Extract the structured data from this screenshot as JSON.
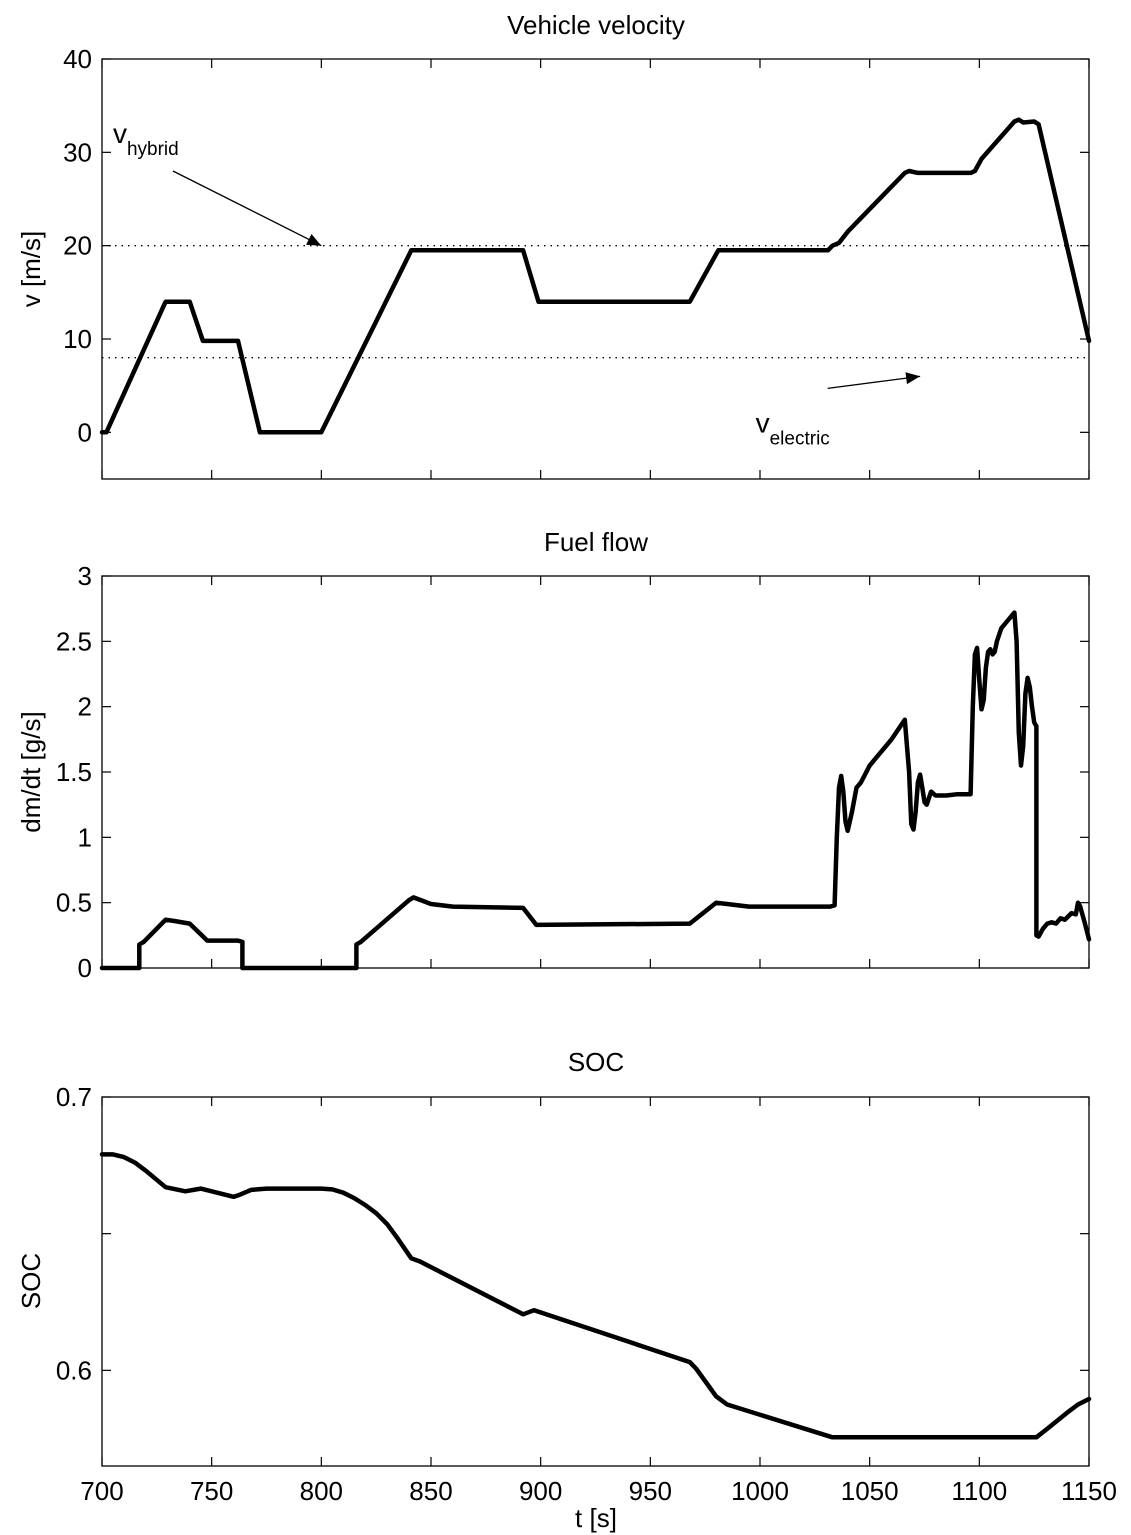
{
  "colors": {
    "line": "#000000",
    "background": "#ffffff",
    "axes": "#000000"
  },
  "chart_data": [
    {
      "type": "line",
      "title": "Vehicle velocity",
      "xlabel": "",
      "ylabel": "v [m/s]",
      "xlim": [
        700,
        1150
      ],
      "ylim": [
        -5,
        40
      ],
      "yticks": [
        "0",
        "10",
        "20",
        "30",
        "40"
      ],
      "xticks": [
        "",
        "",
        "",
        "",
        "",
        "",
        "",
        "",
        "",
        ""
      ],
      "grid": false,
      "series": [
        {
          "x": [
            700,
            702,
            729,
            740,
            746,
            762,
            772,
            800,
            841,
            892,
            899,
            968,
            981,
            1031,
            1033,
            1036,
            1040,
            1066,
            1068,
            1072,
            1077,
            1096,
            1098,
            1101,
            1116,
            1118,
            1120,
            1125,
            1127,
            1150
          ],
          "y": [
            0,
            0,
            14,
            14,
            9.8,
            9.8,
            0,
            0,
            19.5,
            19.5,
            14,
            14,
            19.5,
            19.5,
            20,
            20.3,
            21.5,
            27.8,
            28,
            27.8,
            27.8,
            27.8,
            28,
            29.3,
            33.3,
            33.5,
            33.2,
            33.3,
            33,
            9.8
          ]
        }
      ],
      "reference_lines": [
        {
          "y": 20,
          "style": "dotted"
        },
        {
          "y": 8,
          "style": "dotted"
        }
      ],
      "annotations": [
        {
          "text": "v",
          "subscript": "hybrid",
          "at_x": 705,
          "at_y": 31,
          "arrow_to": [
            800,
            20
          ]
        },
        {
          "text": "v",
          "subscript": "electric",
          "at_x": 998,
          "at_y": 0,
          "arrow_to": [
            1073,
            6
          ]
        }
      ]
    },
    {
      "type": "line",
      "title": "Fuel flow",
      "xlabel": "",
      "ylabel": "dm/dt [g/s]",
      "xlim": [
        700,
        1150
      ],
      "ylim": [
        0,
        3
      ],
      "yticks": [
        "0",
        "0.5",
        "1",
        "1.5",
        "2",
        "2.5",
        "3"
      ],
      "xticks": [
        "",
        "",
        "",
        "",
        "",
        "",
        "",
        "",
        "",
        ""
      ],
      "grid": false,
      "series": [
        {
          "x": [
            700,
            717,
            717,
            719,
            729,
            733,
            740,
            748,
            762,
            764,
            764,
            816,
            816,
            818,
            840,
            842,
            850,
            860,
            892,
            898,
            968,
            980,
            985,
            995,
            1032,
            1034,
            1035,
            1036,
            1037,
            1038,
            1039,
            1040,
            1042,
            1044,
            1046,
            1050,
            1055,
            1060,
            1066,
            1068,
            1069,
            1070,
            1071,
            1072,
            1073,
            1074,
            1075,
            1076,
            1077,
            1078,
            1080,
            1082,
            1085,
            1090,
            1096,
            1097,
            1098,
            1099,
            1100,
            1101,
            1102,
            1103,
            1104,
            1105,
            1106,
            1107,
            1108,
            1110,
            1112,
            1115,
            1116,
            1117,
            1118,
            1119,
            1120,
            1121,
            1122,
            1123,
            1124,
            1125,
            1126,
            1126,
            1127,
            1129,
            1131,
            1133,
            1135,
            1137,
            1139,
            1142,
            1144,
            1145,
            1146,
            1148,
            1150
          ],
          "y": [
            0,
            0,
            0.18,
            0.2,
            0.37,
            0.36,
            0.34,
            0.21,
            0.21,
            0.2,
            0,
            0,
            0.18,
            0.2,
            0.52,
            0.54,
            0.49,
            0.47,
            0.46,
            0.33,
            0.34,
            0.5,
            0.49,
            0.47,
            0.47,
            0.48,
            1.0,
            1.38,
            1.47,
            1.35,
            1.12,
            1.05,
            1.2,
            1.38,
            1.42,
            1.55,
            1.65,
            1.75,
            1.9,
            1.5,
            1.1,
            1.06,
            1.2,
            1.42,
            1.48,
            1.38,
            1.27,
            1.25,
            1.3,
            1.35,
            1.32,
            1.32,
            1.32,
            1.33,
            1.33,
            2.0,
            2.4,
            2.45,
            2.2,
            1.98,
            2.05,
            2.3,
            2.42,
            2.44,
            2.4,
            2.42,
            2.5,
            2.6,
            2.64,
            2.7,
            2.72,
            2.5,
            1.8,
            1.55,
            1.7,
            2.1,
            2.22,
            2.15,
            2.0,
            1.88,
            1.85,
            0.25,
            0.24,
            0.3,
            0.34,
            0.35,
            0.34,
            0.38,
            0.37,
            0.42,
            0.41,
            0.5,
            0.47,
            0.35,
            0.22
          ]
        }
      ]
    },
    {
      "type": "line",
      "title": "SOC",
      "xlabel": "t [s]",
      "ylabel": "SOC",
      "xlim": [
        700,
        1150
      ],
      "ylim": [
        0.565,
        0.7
      ],
      "yticks": [
        "0.6",
        "0.7"
      ],
      "xticks": [
        "700",
        "750",
        "800",
        "850",
        "900",
        "950",
        "1000",
        "1050",
        "1100",
        "1150"
      ],
      "grid": false,
      "series": [
        {
          "x": [
            700,
            705,
            710,
            715,
            720,
            729,
            738,
            745,
            760,
            762,
            768,
            775,
            800,
            805,
            810,
            815,
            820,
            825,
            830,
            835,
            841,
            845,
            892,
            897,
            968,
            971,
            980,
            985,
            1033,
            1126,
            1130,
            1140,
            1145,
            1150
          ],
          "y": [
            0.679,
            0.679,
            0.678,
            0.676,
            0.673,
            0.667,
            0.6655,
            0.6665,
            0.6635,
            0.664,
            0.666,
            0.6665,
            0.6665,
            0.6662,
            0.665,
            0.663,
            0.6605,
            0.6575,
            0.6535,
            0.648,
            0.641,
            0.6398,
            0.6205,
            0.622,
            0.603,
            0.6005,
            0.5905,
            0.5875,
            0.5755,
            0.5755,
            0.578,
            0.5845,
            0.5875,
            0.5895
          ]
        }
      ]
    }
  ]
}
